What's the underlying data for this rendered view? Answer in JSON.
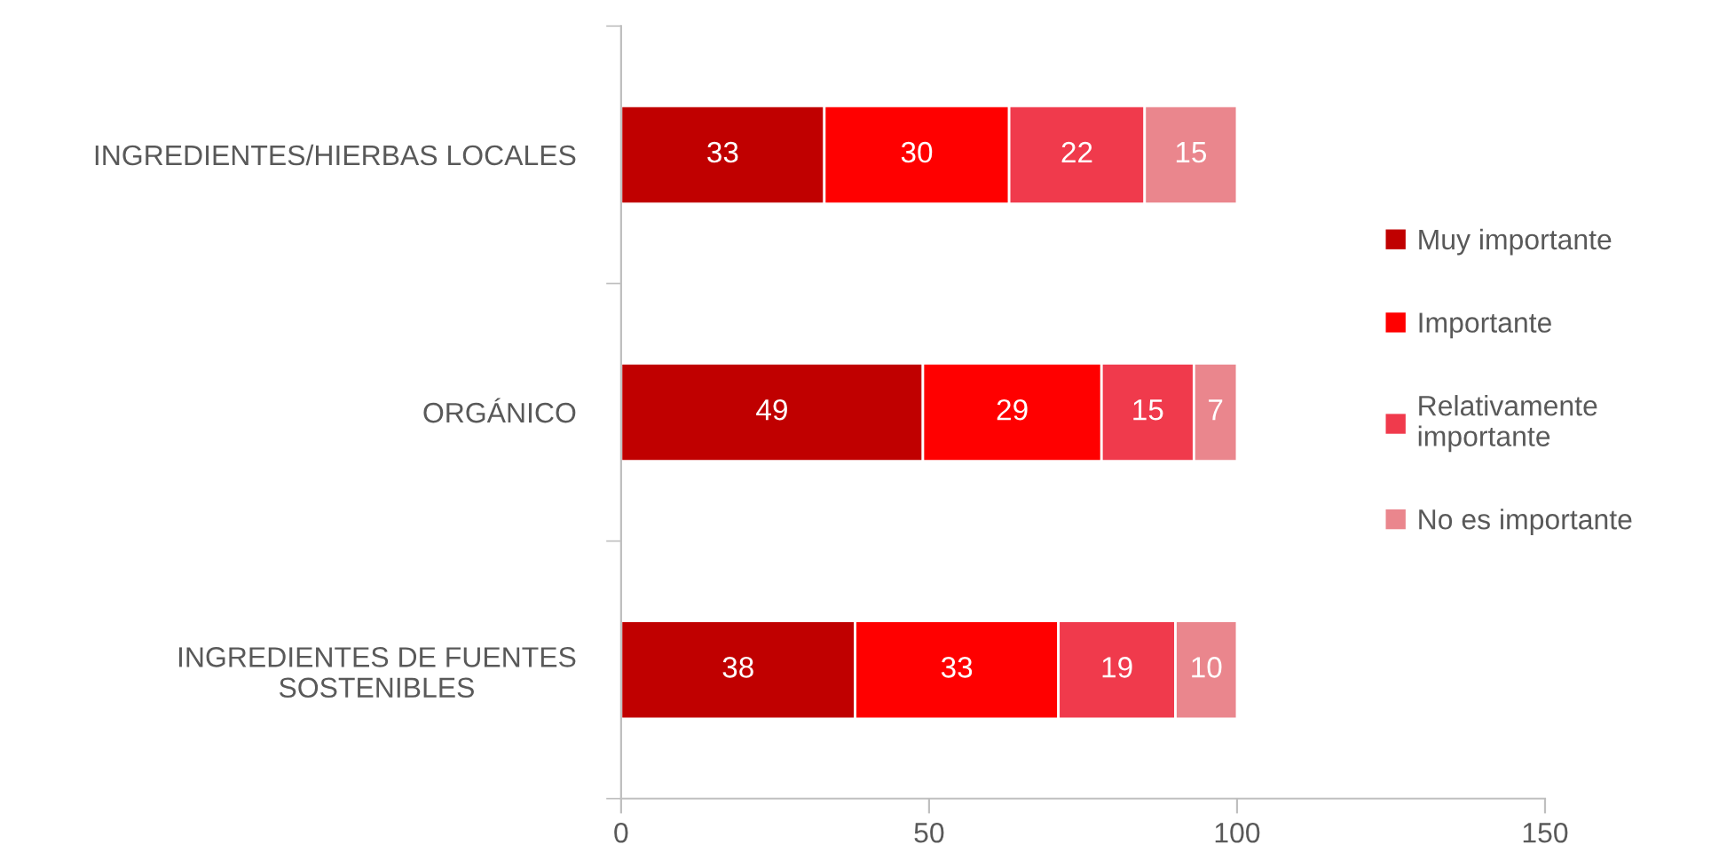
{
  "chart_data": {
    "type": "bar",
    "orientation": "horizontal",
    "stacked": true,
    "data_labels": true,
    "legend": "right",
    "grid": false,
    "categories": [
      "INGREDIENTES/HIERBAS LOCALES",
      "ORGÁNICO",
      "INGREDIENTES DE FUENTES\nSOSTENIBLES"
    ],
    "series": [
      {
        "name": "Muy importante",
        "color": "#c00000",
        "values": [
          33,
          49,
          38
        ]
      },
      {
        "name": "Importante",
        "color": "#ff0000",
        "values": [
          30,
          29,
          33
        ]
      },
      {
        "name": "Relativamente\nimportante",
        "color": "#f03a4c",
        "values": [
          22,
          15,
          19
        ]
      },
      {
        "name": "No es importante",
        "color": "#ea868d",
        "values": [
          15,
          7,
          10
        ]
      }
    ],
    "xlim": [
      0,
      150
    ],
    "xticks": [
      0,
      50,
      100,
      150
    ]
  }
}
